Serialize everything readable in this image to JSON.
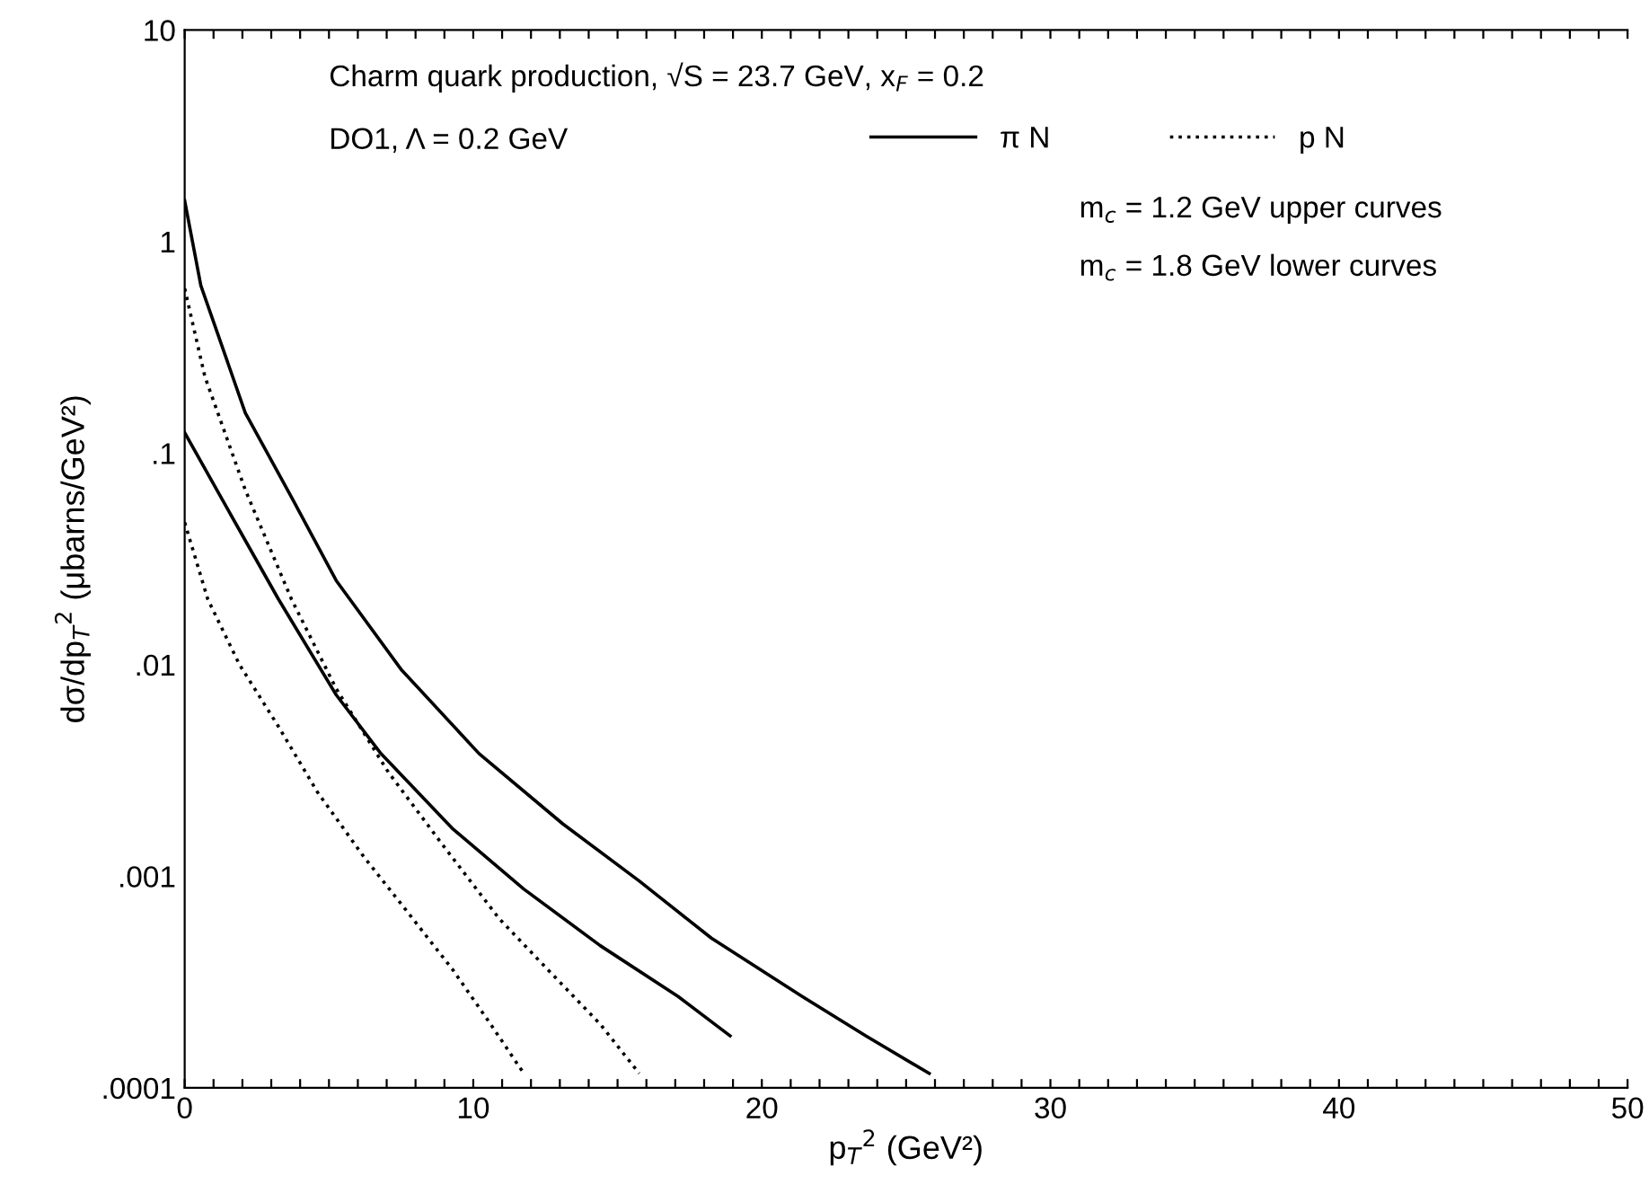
{
  "chart_data": {
    "type": "line",
    "log": true,
    "xlabel": "p$_{T}$$^{2}$ (GeV²)",
    "ylabel": "dσ/dp$_{T}$$^{2}$ (μbarns/GeV²)",
    "xlim": [
      0,
      50
    ],
    "ylim": [
      0.0001,
      10
    ],
    "xticks": [
      0,
      {
        "value": 1,
        "label": null
      },
      {
        "value": 2,
        "label": null
      },
      {
        "value": 3,
        "label": null
      },
      {
        "value": 4,
        "label": null
      },
      {
        "value": 5,
        "label": null
      },
      {
        "value": 6,
        "label": null
      },
      {
        "value": 7,
        "label": null
      },
      {
        "value": 8,
        "label": null
      },
      {
        "value": 9,
        "label": null
      },
      10,
      {
        "value": 11,
        "label": null
      },
      {
        "value": 12,
        "label": null
      },
      {
        "value": 13,
        "label": null
      },
      {
        "value": 14,
        "label": null
      },
      {
        "value": 15,
        "label": null
      },
      {
        "value": 16,
        "label": null
      },
      {
        "value": 17,
        "label": null
      },
      {
        "value": 18,
        "label": null
      },
      {
        "value": 19,
        "label": null
      },
      20,
      {
        "value": 21,
        "label": null
      },
      {
        "value": 22,
        "label": null
      },
      {
        "value": 23,
        "label": null
      },
      {
        "value": 24,
        "label": null
      },
      {
        "value": 25,
        "label": null
      },
      {
        "value": 26,
        "label": null
      },
      {
        "value": 27,
        "label": null
      },
      {
        "value": 28,
        "label": null
      },
      {
        "value": 29,
        "label": null
      },
      30,
      {
        "value": 31,
        "label": null
      },
      {
        "value": 32,
        "label": null
      },
      {
        "value": 33,
        "label": null
      },
      {
        "value": 34,
        "label": null
      },
      {
        "value": 35,
        "label": null
      },
      {
        "value": 36,
        "label": null
      },
      {
        "value": 37,
        "label": null
      },
      {
        "value": 38,
        "label": null
      },
      {
        "value": 39,
        "label": null
      },
      40,
      {
        "value": 41,
        "label": null
      },
      {
        "value": 42,
        "label": null
      },
      {
        "value": 43,
        "label": null
      },
      {
        "value": 44,
        "label": null
      },
      {
        "value": 45,
        "label": null
      },
      {
        "value": 46,
        "label": null
      },
      {
        "value": 47,
        "label": null
      },
      {
        "value": 48,
        "label": null
      },
      {
        "value": 49,
        "label": null
      },
      50
    ],
    "yticks": [
      {
        "value": 0.0001,
        "label": ".0001"
      },
      {
        "value": 0.001,
        "label": ".001"
      },
      {
        "value": 0.01,
        "label": ".01"
      },
      {
        "value": 0.1,
        "label": ".1"
      },
      1,
      10
    ],
    "grid": false,
    "legend": "top",
    "marker": "none",
    "annotations": [
      "Charm quark production, √S = 23.7 GeV, x$_{F}$ = 0.2",
      "DO1, Λ = 0.2 GeV",
      "m$_{c}$ = 1.2 GeV upper curves",
      "m$_{c}$ = 1.8 GeV lower curves"
    ],
    "series": [
      {
        "name": "π N",
        "color": "#000000",
        "line_style": "solid",
        "x": [
          0,
          0.56,
          2.1,
          3.7,
          5.25,
          7.5,
          10.2,
          13.1,
          15.75,
          18.25,
          21.4,
          23.6,
          25.8
        ],
        "values": [
          1.56,
          0.62,
          0.155,
          0.062,
          0.025,
          0.0095,
          0.0038,
          0.00177,
          0.00095,
          0.00051,
          0.00027,
          0.000176,
          0.000117
        ]
      },
      {
        "color": "#000000",
        "line_style": "solid",
        "x": [
          0,
          1.5,
          3.25,
          5.25,
          6.8,
          9.3,
          11.75,
          14.4,
          17.1,
          18.9
        ],
        "values": [
          0.125,
          0.054,
          0.0204,
          0.0072,
          0.0038,
          0.00167,
          0.00087,
          0.00047,
          0.00027,
          0.000176
        ]
      },
      {
        "name": "p N",
        "color": "#000000",
        "line_style": "dotted",
        "x": [
          0,
          0.7,
          2.1,
          3.7,
          5.25,
          7.06,
          8.9,
          10.9,
          12.6,
          14.4,
          15.75
        ],
        "values": [
          0.6,
          0.23,
          0.067,
          0.0204,
          0.0077,
          0.0031,
          0.00143,
          0.00063,
          0.00036,
          0.0002,
          0.000117
        ]
      },
      {
        "color": "#000000",
        "line_style": "dotted",
        "x": [
          0,
          0.8,
          1.9,
          3.25,
          4.6,
          6.2,
          7.75,
          9.3,
          10.6,
          11.75
        ],
        "values": [
          0.047,
          0.0204,
          0.01,
          0.0051,
          0.0025,
          0.00124,
          0.00067,
          0.00036,
          0.0002,
          0.000117
        ]
      }
    ]
  }
}
